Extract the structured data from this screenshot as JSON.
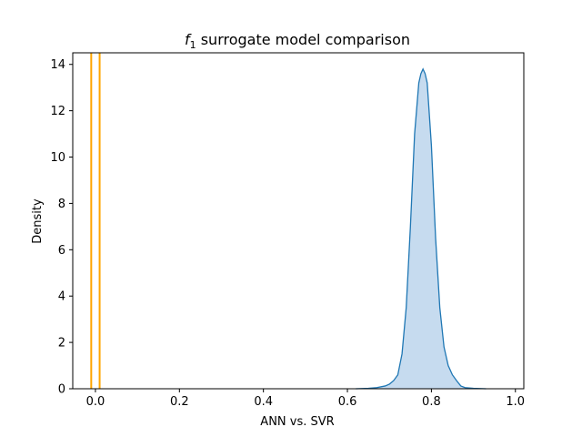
{
  "chart_data": {
    "type": "area",
    "title_var": "f",
    "title_sub": "1",
    "title_rest": " surrogate model comparison",
    "xlabel": "ANN vs. SVR",
    "ylabel": "Density",
    "xlim": [
      -0.054,
      1.02
    ],
    "ylim": [
      0,
      14.5
    ],
    "xticks": [
      0.0,
      0.2,
      0.4,
      0.6,
      0.8,
      1.0
    ],
    "xtick_labels": [
      "0.0",
      "0.2",
      "0.4",
      "0.6",
      "0.8",
      "1.0"
    ],
    "yticks": [
      0,
      2,
      4,
      6,
      8,
      10,
      12,
      14
    ],
    "ytick_labels": [
      "0",
      "2",
      "4",
      "6",
      "8",
      "10",
      "12",
      "14"
    ],
    "grid": false,
    "legend": "none",
    "series": [
      {
        "kind": "kde",
        "color": "#1f77b4",
        "fill": "#c6dbef",
        "x": [
          0.62,
          0.65,
          0.67,
          0.69,
          0.7,
          0.71,
          0.72,
          0.73,
          0.74,
          0.75,
          0.76,
          0.77,
          0.775,
          0.78,
          0.785,
          0.79,
          0.8,
          0.81,
          0.82,
          0.83,
          0.84,
          0.85,
          0.86,
          0.87,
          0.88,
          0.9,
          0.93
        ],
        "y": [
          0.0,
          0.02,
          0.05,
          0.12,
          0.2,
          0.35,
          0.6,
          1.5,
          3.5,
          7.0,
          11.0,
          13.2,
          13.6,
          13.8,
          13.6,
          13.2,
          10.5,
          6.5,
          3.5,
          1.8,
          1.0,
          0.6,
          0.35,
          0.12,
          0.05,
          0.02,
          0.0
        ]
      }
    ],
    "vlines": [
      {
        "x": -0.01,
        "color": "#ffa500"
      },
      {
        "x": 0.01,
        "color": "#ffa500"
      }
    ]
  }
}
